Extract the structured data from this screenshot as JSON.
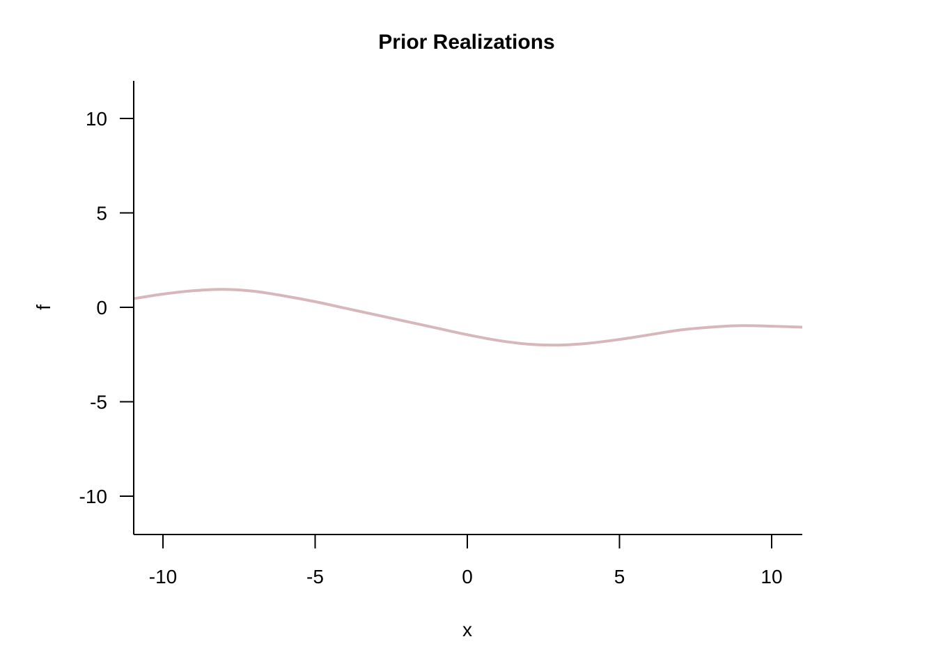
{
  "chart_data": {
    "type": "line",
    "title": "Prior Realizations",
    "xlabel": "x",
    "ylabel": "f",
    "xlim": [
      -11,
      11
    ],
    "ylim": [
      -12,
      12
    ],
    "xticks": [
      -10,
      -5,
      0,
      5,
      10
    ],
    "yticks": [
      -10,
      -5,
      0,
      5,
      10
    ],
    "grid": false,
    "series": [
      {
        "color": "#d8b7ba",
        "x": [
          -11,
          -10,
          -9,
          -8,
          -7,
          -6,
          -5,
          -4,
          -3,
          -2,
          -1,
          0,
          1,
          2,
          3,
          4,
          5,
          6,
          7,
          8,
          9,
          10,
          11
        ],
        "y": [
          0.45,
          0.7,
          0.88,
          0.95,
          0.85,
          0.6,
          0.3,
          -0.05,
          -0.4,
          -0.75,
          -1.1,
          -1.45,
          -1.75,
          -1.95,
          -2.0,
          -1.9,
          -1.7,
          -1.45,
          -1.2,
          -1.05,
          -0.97,
          -1.0,
          -1.05
        ]
      }
    ]
  }
}
